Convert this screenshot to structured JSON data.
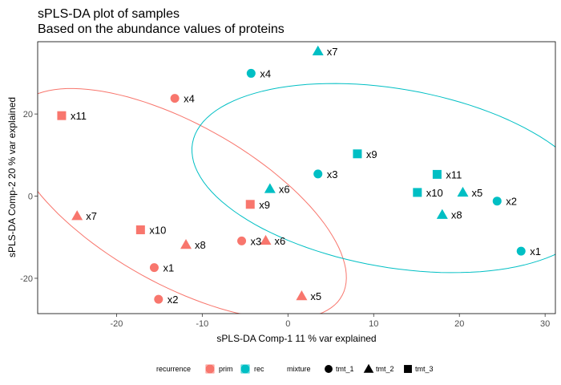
{
  "chart_data": {
    "type": "scatter",
    "title": "sPLS-DA plot of samples",
    "subtitle": "Based on the abundance values of proteins",
    "xlabel": "sPLS-DA Comp-1 11 % var explained",
    "ylabel": "sPLS-DA Comp-2 20 % var explained",
    "xlim": [
      -29.2,
      31.2
    ],
    "ylim": [
      -28.6,
      37.6
    ],
    "x_ticks": [
      -20,
      -10,
      0,
      10,
      20,
      30
    ],
    "y_ticks": [
      -20,
      0,
      20
    ],
    "grid": false,
    "legend_position": "bottom",
    "colors": {
      "prim": "#f8766d",
      "rec": "#00bfc4"
    },
    "legend": {
      "recurrence_title": "recurrence",
      "recurrence": [
        "prim",
        "rec"
      ],
      "mixture_title": "mixture",
      "mixture": [
        "tmt_1",
        "tmt_2",
        "tmt_3"
      ]
    },
    "ellipses": [
      {
        "group": "prim",
        "center": [
          -12.8,
          -1.9
        ],
        "semi_axes": [
          13.5,
          31.5
        ],
        "angle_deg": 30
      },
      {
        "group": "rec",
        "center": [
          12.3,
          4.4
        ],
        "semi_axes": [
          19.5,
          26.5
        ],
        "angle_deg": 47
      }
    ],
    "points": [
      {
        "label": "x11",
        "x": -26.4,
        "y": 19.6,
        "group": "prim",
        "mixture": "tmt_3"
      },
      {
        "label": "x4",
        "x": -13.2,
        "y": 23.8,
        "group": "prim",
        "mixture": "tmt_1"
      },
      {
        "label": "x7",
        "x": -24.6,
        "y": -4.8,
        "group": "prim",
        "mixture": "tmt_2"
      },
      {
        "label": "x10",
        "x": -17.2,
        "y": -8.2,
        "group": "prim",
        "mixture": "tmt_3"
      },
      {
        "label": "x8",
        "x": -11.9,
        "y": -11.8,
        "group": "prim",
        "mixture": "tmt_2"
      },
      {
        "label": "x9",
        "x": -4.4,
        "y": -2.0,
        "group": "prim",
        "mixture": "tmt_3"
      },
      {
        "label": "x3",
        "x": -5.4,
        "y": -10.9,
        "group": "prim",
        "mixture": "tmt_1"
      },
      {
        "label": "x6",
        "x": -2.6,
        "y": -10.8,
        "group": "prim",
        "mixture": "tmt_2"
      },
      {
        "label": "x1",
        "x": -15.6,
        "y": -17.4,
        "group": "prim",
        "mixture": "tmt_1"
      },
      {
        "label": "x2",
        "x": -15.1,
        "y": -25.1,
        "group": "prim",
        "mixture": "tmt_1"
      },
      {
        "label": "x5",
        "x": 1.6,
        "y": -24.3,
        "group": "prim",
        "mixture": "tmt_2"
      },
      {
        "label": "x7",
        "x": 3.5,
        "y": 35.3,
        "group": "rec",
        "mixture": "tmt_2"
      },
      {
        "label": "x4",
        "x": -4.3,
        "y": 29.9,
        "group": "rec",
        "mixture": "tmt_1"
      },
      {
        "label": "x9",
        "x": 8.1,
        "y": 10.3,
        "group": "rec",
        "mixture": "tmt_3"
      },
      {
        "label": "x3",
        "x": 3.5,
        "y": 5.4,
        "group": "rec",
        "mixture": "tmt_1"
      },
      {
        "label": "x6",
        "x": -2.1,
        "y": 1.8,
        "group": "rec",
        "mixture": "tmt_2"
      },
      {
        "label": "x11",
        "x": 17.4,
        "y": 5.3,
        "group": "rec",
        "mixture": "tmt_3"
      },
      {
        "label": "x10",
        "x": 15.1,
        "y": 0.9,
        "group": "rec",
        "mixture": "tmt_3"
      },
      {
        "label": "x5",
        "x": 20.4,
        "y": 0.9,
        "group": "rec",
        "mixture": "tmt_2"
      },
      {
        "label": "x2",
        "x": 24.4,
        "y": -1.2,
        "group": "rec",
        "mixture": "tmt_1"
      },
      {
        "label": "x8",
        "x": 18.0,
        "y": -4.5,
        "group": "rec",
        "mixture": "tmt_2"
      },
      {
        "label": "x1",
        "x": 27.2,
        "y": -13.4,
        "group": "rec",
        "mixture": "tmt_1"
      }
    ]
  }
}
